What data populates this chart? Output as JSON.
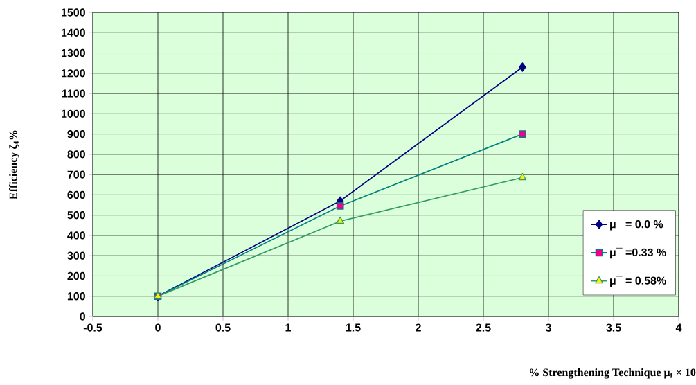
{
  "chart_data": {
    "type": "line",
    "xlabel": "% Strengthening Technique μ$_{f}$ × 10",
    "ylabel": "Efficiency ζ$_{4}$%",
    "x": [
      0,
      1.4,
      2.8
    ],
    "series": [
      {
        "name": "μ¯  = 0.0 %",
        "color": "#000080",
        "marker": "diamond",
        "values": [
          100,
          570,
          1230
        ]
      },
      {
        "name": "μ¯  =0.33 %",
        "color": "#008080",
        "marker": "square",
        "values": [
          100,
          545,
          900
        ]
      },
      {
        "name": "μ¯  = 0.58%",
        "color": "#339966",
        "marker": "triangle",
        "values": [
          100,
          470,
          685
        ]
      }
    ],
    "xlim": [
      -0.5,
      4
    ],
    "xticks": [
      -0.5,
      0,
      0.5,
      1,
      1.5,
      2,
      2.5,
      3,
      3.5,
      4
    ],
    "ylim": [
      0,
      1500
    ],
    "yticks": [
      0,
      100,
      200,
      300,
      400,
      500,
      600,
      700,
      800,
      900,
      1000,
      1100,
      1200,
      1300,
      1400,
      1500
    ],
    "grid": true,
    "legend": "right",
    "line_style": "solid"
  }
}
